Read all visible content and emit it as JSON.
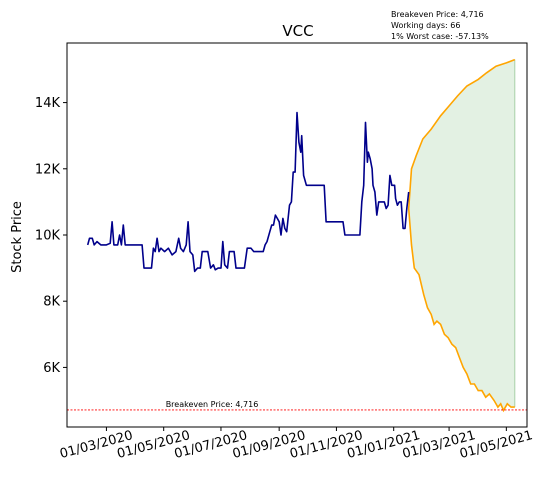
{
  "chart_data": {
    "type": "line",
    "title": "VCC",
    "xlabel": "",
    "ylabel": "Stock Price",
    "annotations": {
      "breakeven": "Breakeven Price: 4,716",
      "working_days": "Working days: 66",
      "worst_case": "1% Worst case: -57.13%"
    },
    "breakeven_label": "Breakeven Price: 4,716",
    "breakeven_price": 4716,
    "xlim": [
      "2020-01-19",
      "2021-05-23"
    ],
    "ylim": [
      4200,
      15800
    ],
    "x_ticks": [
      {
        "date": "2020-03-01",
        "label": "01/03/2020"
      },
      {
        "date": "2020-05-01",
        "label": "01/05/2020"
      },
      {
        "date": "2020-07-01",
        "label": "01/07/2020"
      },
      {
        "date": "2020-09-01",
        "label": "01/09/2020"
      },
      {
        "date": "2020-11-01",
        "label": "01/11/2020"
      },
      {
        "date": "2021-01-01",
        "label": "01/01/2021"
      },
      {
        "date": "2021-03-01",
        "label": "01/03/2021"
      },
      {
        "date": "2021-05-01",
        "label": "01/05/2021"
      }
    ],
    "y_ticks": [
      {
        "value": 6000,
        "label": "6K"
      },
      {
        "value": 8000,
        "label": "8K"
      },
      {
        "value": 10000,
        "label": "10K"
      },
      {
        "value": 12000,
        "label": "12K"
      },
      {
        "value": 14000,
        "label": "14K"
      }
    ],
    "grid": false,
    "colors": {
      "history": "#00008b",
      "forecast": "#ffa500",
      "band_fill": "#d9ecd9",
      "breakeven_line": "#ff0000"
    },
    "series": [
      {
        "role": "history",
        "points": [
          [
            "2020-02-10",
            9700
          ],
          [
            "2020-02-12",
            9900
          ],
          [
            "2020-02-15",
            9900
          ],
          [
            "2020-02-17",
            9700
          ],
          [
            "2020-02-20",
            9800
          ],
          [
            "2020-02-24",
            9700
          ],
          [
            "2020-03-01",
            9700
          ],
          [
            "2020-03-05",
            9750
          ],
          [
            "2020-03-07",
            10400
          ],
          [
            "2020-03-09",
            9700
          ],
          [
            "2020-03-13",
            9700
          ],
          [
            "2020-03-15",
            10000
          ],
          [
            "2020-03-17",
            9700
          ],
          [
            "2020-03-19",
            10300
          ],
          [
            "2020-03-21",
            9700
          ],
          [
            "2020-03-25",
            9700
          ],
          [
            "2020-04-01",
            9700
          ],
          [
            "2020-04-08",
            9700
          ],
          [
            "2020-04-10",
            9000
          ],
          [
            "2020-04-15",
            9000
          ],
          [
            "2020-04-18",
            9000
          ],
          [
            "2020-04-20",
            9600
          ],
          [
            "2020-04-22",
            9500
          ],
          [
            "2020-04-24",
            9900
          ],
          [
            "2020-04-26",
            9500
          ],
          [
            "2020-04-28",
            9600
          ],
          [
            "2020-05-02",
            9500
          ],
          [
            "2020-05-06",
            9600
          ],
          [
            "2020-05-10",
            9400
          ],
          [
            "2020-05-14",
            9500
          ],
          [
            "2020-05-17",
            9900
          ],
          [
            "2020-05-19",
            9600
          ],
          [
            "2020-05-22",
            9500
          ],
          [
            "2020-05-25",
            9700
          ],
          [
            "2020-05-27",
            10400
          ],
          [
            "2020-05-29",
            9500
          ],
          [
            "2020-06-01",
            9400
          ],
          [
            "2020-06-03",
            8900
          ],
          [
            "2020-06-06",
            9000
          ],
          [
            "2020-06-09",
            9000
          ],
          [
            "2020-06-11",
            9500
          ],
          [
            "2020-06-17",
            9500
          ],
          [
            "2020-06-20",
            9000
          ],
          [
            "2020-06-23",
            9100
          ],
          [
            "2020-06-25",
            8950
          ],
          [
            "2020-06-28",
            9000
          ],
          [
            "2020-07-01",
            9000
          ],
          [
            "2020-07-03",
            9800
          ],
          [
            "2020-07-05",
            9100
          ],
          [
            "2020-07-08",
            9000
          ],
          [
            "2020-07-10",
            9500
          ],
          [
            "2020-07-15",
            9500
          ],
          [
            "2020-07-17",
            9000
          ],
          [
            "2020-07-22",
            9000
          ],
          [
            "2020-07-26",
            9000
          ],
          [
            "2020-07-29",
            9600
          ],
          [
            "2020-08-02",
            9600
          ],
          [
            "2020-08-05",
            9500
          ],
          [
            "2020-08-12",
            9500
          ],
          [
            "2020-08-15",
            9500
          ],
          [
            "2020-08-17",
            9700
          ],
          [
            "2020-08-19",
            9800
          ],
          [
            "2020-08-22",
            10100
          ],
          [
            "2020-08-24",
            10300
          ],
          [
            "2020-08-26",
            10300
          ],
          [
            "2020-08-28",
            10600
          ],
          [
            "2020-08-30",
            10500
          ],
          [
            "2020-09-01",
            10400
          ],
          [
            "2020-09-03",
            10000
          ],
          [
            "2020-09-05",
            10500
          ],
          [
            "2020-09-07",
            10200
          ],
          [
            "2020-09-09",
            10100
          ],
          [
            "2020-09-12",
            10900
          ],
          [
            "2020-09-14",
            11000
          ],
          [
            "2020-09-16",
            11900
          ],
          [
            "2020-09-18",
            11900
          ],
          [
            "2020-09-20",
            13700
          ],
          [
            "2020-09-22",
            12800
          ],
          [
            "2020-09-24",
            12500
          ],
          [
            "2020-09-25",
            13000
          ],
          [
            "2020-09-27",
            11800
          ],
          [
            "2020-09-30",
            11500
          ],
          [
            "2020-10-05",
            11500
          ],
          [
            "2020-10-10",
            11500
          ],
          [
            "2020-10-15",
            11500
          ],
          [
            "2020-10-19",
            11500
          ],
          [
            "2020-10-21",
            10400
          ],
          [
            "2020-10-28",
            10400
          ],
          [
            "2020-11-05",
            10400
          ],
          [
            "2020-11-08",
            10400
          ],
          [
            "2020-11-10",
            10000
          ],
          [
            "2020-11-20",
            10000
          ],
          [
            "2020-11-26",
            10000
          ],
          [
            "2020-11-28",
            11000
          ],
          [
            "2020-11-30",
            11500
          ],
          [
            "2020-12-02",
            13400
          ],
          [
            "2020-12-04",
            12200
          ],
          [
            "2020-12-05",
            12500
          ],
          [
            "2020-12-07",
            12300
          ],
          [
            "2020-12-09",
            12000
          ],
          [
            "2020-12-10",
            11500
          ],
          [
            "2020-12-12",
            11300
          ],
          [
            "2020-12-14",
            10600
          ],
          [
            "2020-12-16",
            11000
          ],
          [
            "2020-12-22",
            11000
          ],
          [
            "2020-12-24",
            10800
          ],
          [
            "2020-12-26",
            10900
          ],
          [
            "2020-12-28",
            11800
          ],
          [
            "2020-12-30",
            11500
          ],
          [
            "2021-01-02",
            11500
          ],
          [
            "2021-01-03",
            11100
          ],
          [
            "2021-01-05",
            10900
          ],
          [
            "2021-01-07",
            11000
          ],
          [
            "2021-01-09",
            11000
          ],
          [
            "2021-01-11",
            10200
          ],
          [
            "2021-01-13",
            10200
          ],
          [
            "2021-01-15",
            10800
          ],
          [
            "2021-01-17",
            11300
          ]
        ]
      },
      {
        "role": "forecast_upper",
        "points": [
          [
            "2021-01-17",
            10800
          ],
          [
            "2021-01-20",
            12000
          ],
          [
            "2021-01-25",
            12400
          ],
          [
            "2021-02-01",
            12900
          ],
          [
            "2021-02-10",
            13200
          ],
          [
            "2021-02-20",
            13600
          ],
          [
            "2021-03-01",
            13900
          ],
          [
            "2021-03-10",
            14200
          ],
          [
            "2021-03-20",
            14500
          ],
          [
            "2021-04-01",
            14700
          ],
          [
            "2021-04-10",
            14900
          ],
          [
            "2021-04-20",
            15100
          ],
          [
            "2021-05-01",
            15200
          ],
          [
            "2021-05-10",
            15300
          ]
        ]
      },
      {
        "role": "forecast_lower",
        "points": [
          [
            "2021-01-17",
            10800
          ],
          [
            "2021-01-20",
            9700
          ],
          [
            "2021-01-23",
            9000
          ],
          [
            "2021-01-28",
            8800
          ],
          [
            "2021-02-02",
            8200
          ],
          [
            "2021-02-06",
            7800
          ],
          [
            "2021-02-10",
            7600
          ],
          [
            "2021-02-13",
            7300
          ],
          [
            "2021-02-16",
            7400
          ],
          [
            "2021-02-20",
            7300
          ],
          [
            "2021-02-24",
            7000
          ],
          [
            "2021-02-28",
            6900
          ],
          [
            "2021-03-04",
            6700
          ],
          [
            "2021-03-08",
            6600
          ],
          [
            "2021-03-12",
            6300
          ],
          [
            "2021-03-16",
            6000
          ],
          [
            "2021-03-20",
            5800
          ],
          [
            "2021-03-24",
            5500
          ],
          [
            "2021-03-28",
            5500
          ],
          [
            "2021-04-01",
            5300
          ],
          [
            "2021-04-05",
            5300
          ],
          [
            "2021-04-09",
            5100
          ],
          [
            "2021-04-13",
            5200
          ],
          [
            "2021-04-18",
            5000
          ],
          [
            "2021-04-22",
            4800
          ],
          [
            "2021-04-25",
            4900
          ],
          [
            "2021-04-28",
            4700
          ],
          [
            "2021-05-02",
            4900
          ],
          [
            "2021-05-06",
            4800
          ],
          [
            "2021-05-10",
            4800
          ]
        ]
      }
    ]
  }
}
